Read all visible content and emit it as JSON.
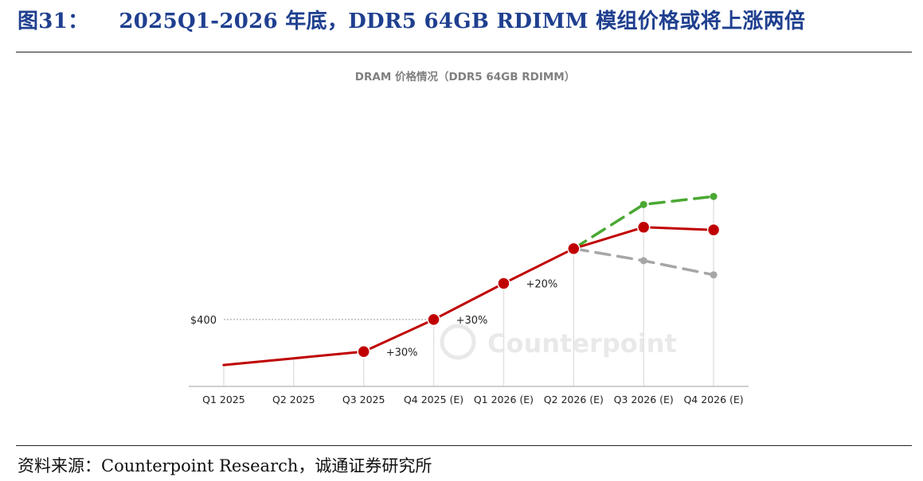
{
  "figure": {
    "label": "图31：",
    "title": "2025Q1-2026 年底，DDR5 64GB RDIMM 模组价格或将上涨两倍",
    "source": "资料来源：Counterpoint Research，诚通证券研究所"
  },
  "chart_data": {
    "type": "line",
    "title": "DRAM 价格情况（DDR5 64GB RDIMM）",
    "watermark": "Counterpoint",
    "categories": [
      "Q1 2025",
      "Q2 2025",
      "Q3 2025",
      "Q4 2025 (E)",
      "Q1 2026 (E)",
      "Q2 2026 (E)",
      "Q3 2026 (E)",
      "Q4 2026 (E)"
    ],
    "reference_line": {
      "label": "$400",
      "value": 400
    },
    "ylim": [
      150,
      1000
    ],
    "series": [
      {
        "style": "solid",
        "color": "#c00000",
        "markers": [
          false,
          false,
          true,
          true,
          true,
          true,
          true,
          true
        ],
        "values": [
          230,
          255,
          280,
          400,
          535,
          665,
          745,
          735
        ]
      },
      {
        "style": "dashed",
        "color": "#4aa832",
        "markers": [
          false,
          false,
          false,
          false,
          false,
          false,
          true,
          true
        ],
        "values": [
          null,
          null,
          null,
          null,
          null,
          665,
          830,
          860
        ]
      },
      {
        "style": "dashed",
        "color": "#a6a6a6",
        "markers": [
          false,
          false,
          false,
          false,
          false,
          false,
          true,
          true
        ],
        "values": [
          null,
          null,
          null,
          null,
          null,
          665,
          620,
          567
        ]
      }
    ],
    "annotations": [
      {
        "text": "+30%",
        "category": "Q3 2025"
      },
      {
        "text": "+30%",
        "category": "Q4 2025 (E)"
      },
      {
        "text": "+20%",
        "category": "Q1 2026 (E)"
      }
    ],
    "grid": "vertical",
    "legend": "none"
  }
}
